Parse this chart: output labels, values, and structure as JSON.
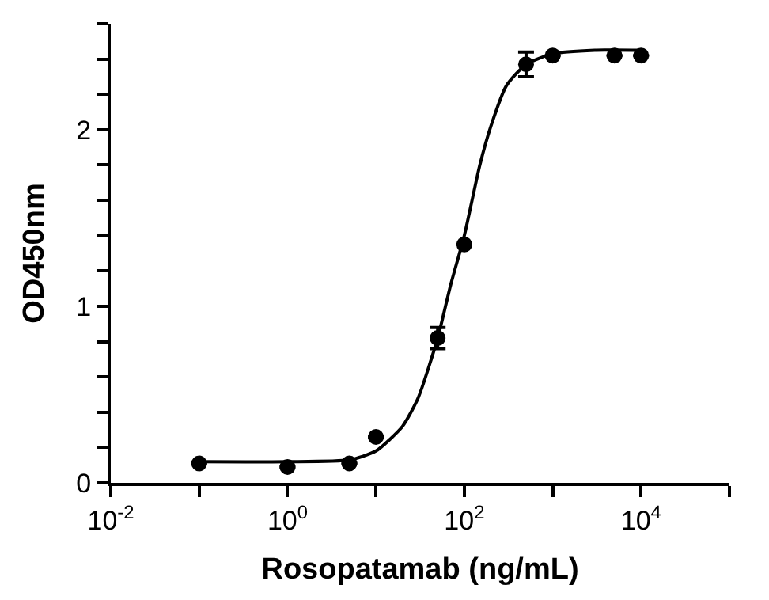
{
  "chart_data": {
    "type": "scatter",
    "xlabel": "Rosopatamab (ng/mL)",
    "ylabel": "OD450nm",
    "log": "x",
    "xlim": [
      0.01,
      100000
    ],
    "ylim": [
      0,
      2.6
    ],
    "xticks": [
      {
        "value": 0.01,
        "label": "10$^{-2}$"
      },
      {
        "value": 0.1,
        "label": null
      },
      {
        "value": 1,
        "label": "10$^{0}$"
      },
      {
        "value": 10,
        "label": null
      },
      {
        "value": 100,
        "label": "10$^{2}$"
      },
      {
        "value": 1000,
        "label": null
      },
      {
        "value": 10000,
        "label": "10$^{4}$"
      },
      {
        "value": 100000,
        "label": null
      }
    ],
    "yticks": [
      0,
      {
        "value": 0.2,
        "label": null
      },
      {
        "value": 0.4,
        "label": null
      },
      {
        "value": 0.6,
        "label": null
      },
      {
        "value": 0.8,
        "label": null
      },
      1,
      {
        "value": 1.2,
        "label": null
      },
      {
        "value": 1.4,
        "label": null
      },
      {
        "value": 1.6,
        "label": null
      },
      {
        "value": 1.8,
        "label": null
      },
      2,
      {
        "value": 2.2,
        "label": null
      },
      {
        "value": 2.4,
        "label": null
      },
      {
        "value": 2.6,
        "label": null
      }
    ],
    "series": [
      {
        "marker": "circle",
        "color": "#000000",
        "x": [
          0.1,
          1,
          5,
          10,
          50,
          100,
          500,
          1000,
          5000,
          10000
        ],
        "values": [
          0.11,
          0.09,
          0.11,
          0.26,
          0.82,
          1.35,
          2.37,
          2.42,
          2.42,
          2.42
        ],
        "errors": [
          null,
          null,
          null,
          null,
          0.06,
          null,
          0.07,
          null,
          null,
          null
        ]
      },
      {
        "type": "line",
        "marker": "none",
        "line_style": "solid",
        "color": "#000000",
        "x": [
          0.1,
          1,
          5,
          10,
          20,
          30,
          50,
          70,
          100,
          150,
          200,
          300,
          500,
          1000,
          3000,
          10000
        ],
        "values": [
          0.12,
          0.12,
          0.13,
          0.18,
          0.32,
          0.48,
          0.82,
          1.12,
          1.4,
          1.8,
          2.02,
          2.25,
          2.37,
          2.43,
          2.45,
          2.45
        ]
      }
    ]
  }
}
